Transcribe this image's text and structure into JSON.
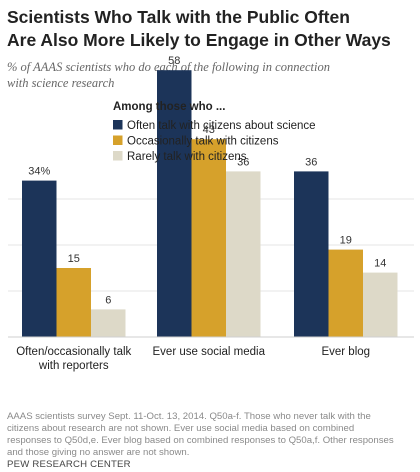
{
  "header": {
    "title_lines": [
      "Scientists Who Talk with the Public Often",
      "Are Also More Likely to Engage  in Other Ways"
    ],
    "subtitle_lines": [
      "% of AAAS scientists who do each of the following in connection",
      "with science research"
    ]
  },
  "chart_data": {
    "type": "bar",
    "legend_title": "Among those who ...",
    "legend_placement": "top-center",
    "grid": true,
    "ylim": [
      0,
      70
    ],
    "categories": [
      [
        "Often/occasionally talk",
        "with reporters"
      ],
      [
        "Ever use social media"
      ],
      [
        "Ever blog"
      ]
    ],
    "series": [
      {
        "name": "Often talk with citizens about science",
        "color": "#1c3459",
        "values": [
          34,
          58,
          36
        ],
        "labels": [
          "34%",
          "58",
          "36"
        ]
      },
      {
        "name": "Occasionally talk with citizens",
        "color": "#d6a12b",
        "values": [
          15,
          43,
          19
        ],
        "labels": [
          "15",
          "43",
          "19"
        ]
      },
      {
        "name": "Rarely talk with citizens",
        "color": "#ddd9c8",
        "values": [
          6,
          36,
          14
        ],
        "labels": [
          "6",
          "36",
          "14"
        ]
      }
    ]
  },
  "footer": {
    "note_lines": [
      "AAAS scientists survey Sept. 11-Oct. 13, 2014. Q50a-f. Those who never talk with the",
      "citizens about research are not shown. Ever use social media based on combined",
      "responses to Q50d,e. Ever blog based on combined responses to Q50a,f. Other responses",
      "and those giving no answer are not shown."
    ],
    "source": "PEW RESEARCH CENTER"
  }
}
